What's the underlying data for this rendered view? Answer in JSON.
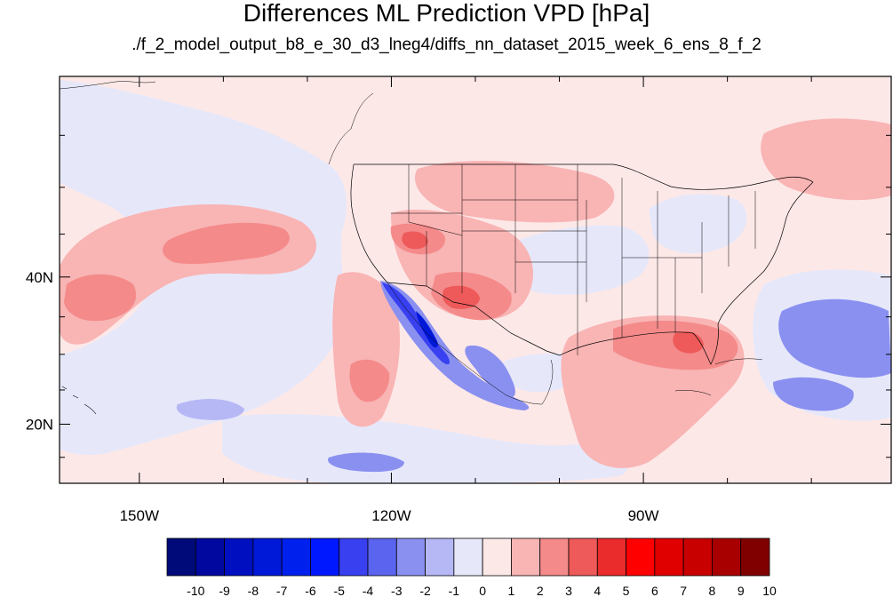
{
  "title": "Differences ML Prediction VPD [hPa]",
  "subtitle": "./f_2_model_output_b8_e_30_d3_lneg4/diffs_nn_dataset_2015_week_6_ens_8_f_2",
  "map": {
    "lon_range": [
      -159.5,
      -60.5
    ],
    "lat_range": [
      11,
      60
    ],
    "lon_ticks": [
      {
        "value": -150,
        "label": "150W"
      },
      {
        "value": -120,
        "label": "120W"
      },
      {
        "value": -90,
        "label": "90W"
      }
    ],
    "lat_ticks": [
      {
        "value": 40,
        "label": "40N"
      },
      {
        "value": 20,
        "label": "20N"
      }
    ],
    "background_color": "#fde8e8"
  },
  "colorbar": {
    "labels": [
      "-10",
      "-9",
      "-8",
      "-7",
      "-6",
      "-5",
      "-4",
      "-3",
      "-2",
      "-1",
      "0",
      "1",
      "2",
      "3",
      "4",
      "5",
      "6",
      "7",
      "8",
      "9",
      "10"
    ],
    "colors": [
      "#000a78",
      "#0008a0",
      "#0010c0",
      "#0018d8",
      "#0020ee",
      "#0018ff",
      "#3840f0",
      "#5a64ee",
      "#8a90f0",
      "#b6b8f6",
      "#e6e8fa",
      "#fde8e8",
      "#f9b4b4",
      "#f48a8a",
      "#ee5a5a",
      "#ea2c2c",
      "#ff0000",
      "#e00000",
      "#c80000",
      "#a80000",
      "#800000"
    ]
  }
}
